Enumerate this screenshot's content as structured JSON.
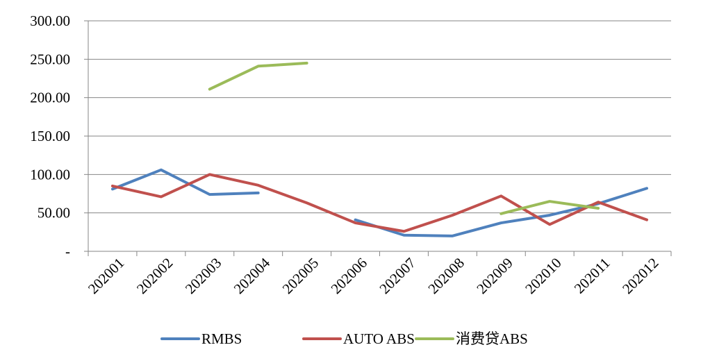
{
  "chart_data": {
    "type": "line",
    "categories": [
      "202001",
      "202002",
      "202003",
      "202004",
      "202005",
      "202006",
      "202007",
      "202008",
      "202009",
      "202010",
      "202011",
      "202012"
    ],
    "ylim": [
      0,
      300
    ],
    "y_ticks": [
      0,
      50,
      100,
      150,
      200,
      250,
      300
    ],
    "y_tick_labels": [
      "-",
      "50.00",
      "100.00",
      "150.00",
      "200.00",
      "250.00",
      "300.00"
    ],
    "grid": true,
    "legend_position": "bottom",
    "series": [
      {
        "name": "RMBS",
        "color": "#4f81bd",
        "values": [
          81,
          106,
          74,
          76,
          null,
          41,
          21,
          20,
          37,
          47,
          62,
          82
        ]
      },
      {
        "name": "AUTO ABS",
        "color": "#c0504d",
        "values": [
          85,
          71,
          100,
          86,
          63,
          37,
          26,
          47,
          72,
          35,
          64,
          41
        ]
      },
      {
        "name": "消费贷ABS",
        "color": "#9bbb59",
        "values": [
          null,
          null,
          211,
          241,
          245,
          null,
          null,
          null,
          49,
          65,
          56,
          null
        ]
      }
    ]
  }
}
